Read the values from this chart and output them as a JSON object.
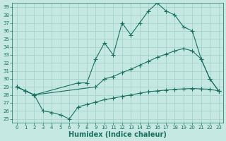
{
  "xlabel": "Humidex (Indice chaleur)",
  "xlim": [
    -0.5,
    23.5
  ],
  "ylim": [
    24.5,
    39.5
  ],
  "yticks": [
    25,
    26,
    27,
    28,
    29,
    30,
    31,
    32,
    33,
    34,
    35,
    36,
    37,
    38,
    39
  ],
  "xticks": [
    0,
    1,
    2,
    3,
    4,
    5,
    6,
    7,
    8,
    9,
    10,
    11,
    12,
    13,
    14,
    15,
    16,
    17,
    18,
    19,
    20,
    21,
    22,
    23
  ],
  "bg_color": "#c5e8e3",
  "grid_color": "#9ecfc7",
  "line_color": "#1a7060",
  "line1_x": [
    0,
    1,
    2,
    7,
    8,
    9,
    10,
    11,
    12,
    13,
    14,
    15,
    16,
    17,
    18,
    19,
    20,
    21,
    22,
    23
  ],
  "line1_y": [
    29.0,
    28.5,
    28.0,
    29.5,
    29.5,
    32.5,
    34.5,
    33.0,
    37.0,
    35.5,
    37.0,
    38.5,
    39.5,
    38.5,
    38.0,
    36.5,
    36.0,
    32.5,
    30.0,
    28.5
  ],
  "line2_x": [
    0,
    1,
    2,
    9,
    10,
    11,
    12,
    13,
    14,
    15,
    16,
    17,
    18,
    19,
    20,
    21,
    22,
    23
  ],
  "line2_y": [
    29.0,
    28.5,
    28.0,
    29.0,
    30.0,
    30.3,
    30.8,
    31.2,
    31.7,
    32.2,
    32.7,
    33.1,
    33.5,
    33.8,
    33.5,
    32.5,
    30.0,
    28.5
  ],
  "line3_x": [
    0,
    1,
    2,
    3,
    4,
    5,
    6,
    7,
    8,
    9,
    10,
    11,
    12,
    13,
    14,
    15,
    16,
    17,
    18,
    19,
    20,
    21,
    22,
    23
  ],
  "line3_y": [
    29.0,
    28.5,
    28.0,
    26.0,
    25.8,
    25.5,
    25.0,
    26.5,
    26.8,
    27.1,
    27.4,
    27.6,
    27.8,
    28.0,
    28.2,
    28.4,
    28.5,
    28.6,
    28.7,
    28.75,
    28.8,
    28.75,
    28.7,
    28.5
  ],
  "marker": "+",
  "markersize": 4,
  "linewidth": 0.8,
  "tick_fontsize": 5.0,
  "xlabel_fontsize": 7.0
}
